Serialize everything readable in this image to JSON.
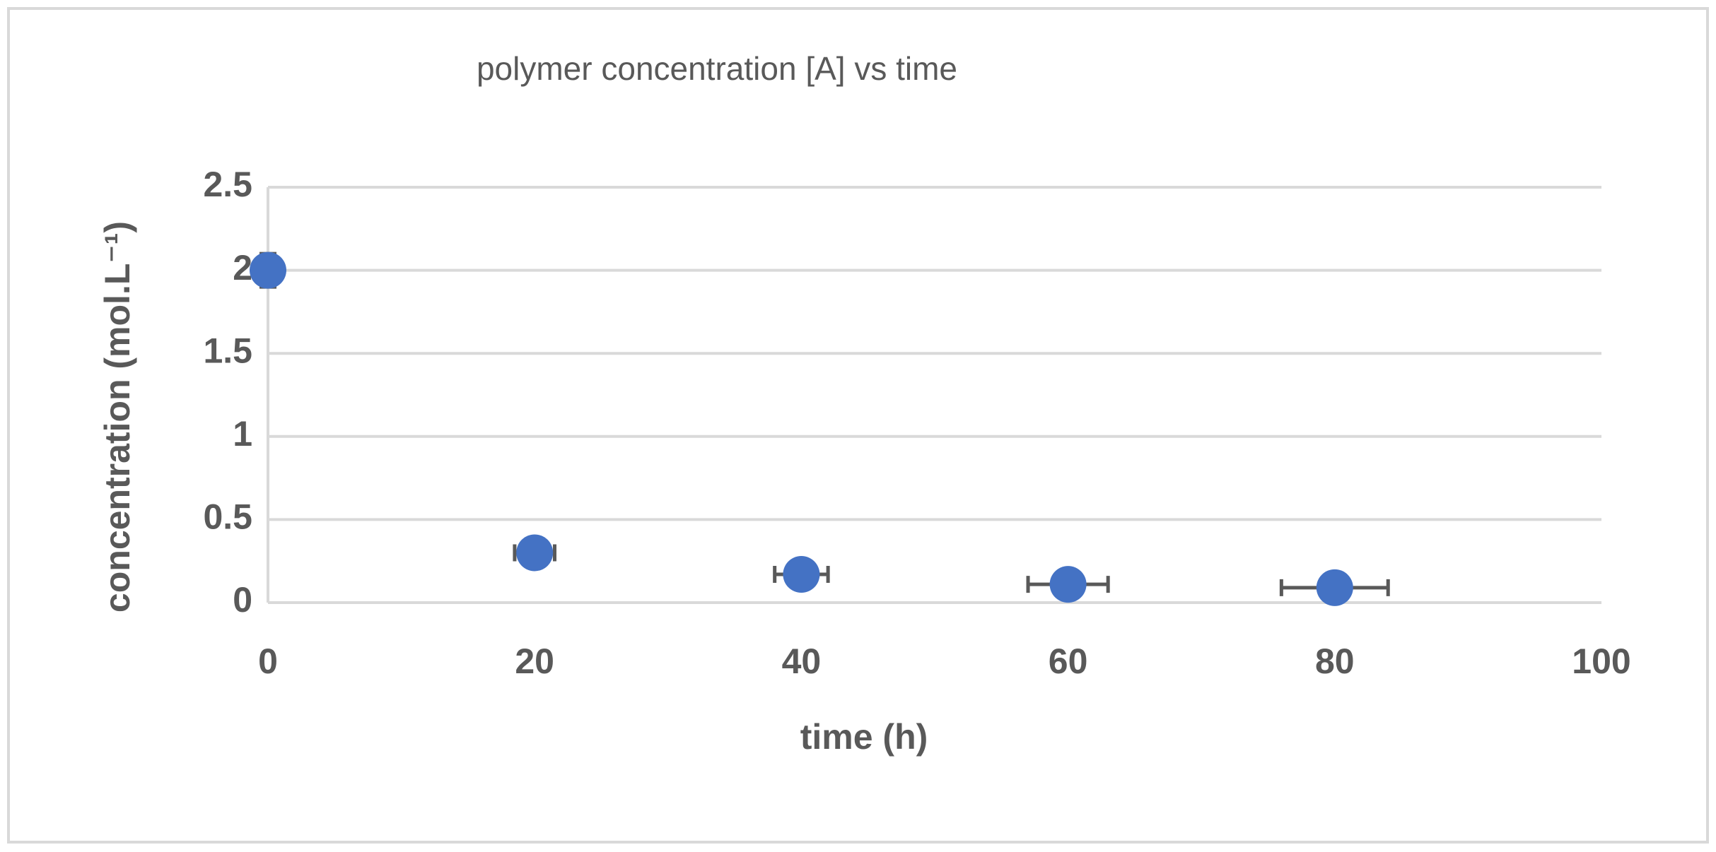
{
  "chart_data": {
    "type": "scatter",
    "title": "polymer concentration [A] vs time",
    "x_label": "time (h)",
    "y_label": "concentration (mol.L⁻¹)",
    "x": [
      0,
      20,
      40,
      60,
      80
    ],
    "values": [
      2,
      0.3,
      0.17,
      0.11,
      0.09
    ],
    "x_err": [
      0,
      1.5,
      2,
      3,
      4
    ],
    "y_err": [
      0.1,
      0.03,
      0,
      0,
      0
    ],
    "color": "#4472c4",
    "error_color": "#595959",
    "xlim": [
      0,
      100
    ],
    "xticks": [
      0,
      20,
      40,
      60,
      80,
      100
    ],
    "ylim": [
      0,
      2.5
    ],
    "yticks": [
      0,
      0.5,
      1,
      1.5,
      2,
      2.5
    ],
    "grid": true
  }
}
